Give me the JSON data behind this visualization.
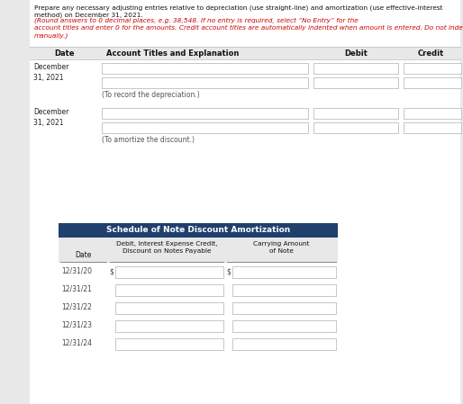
{
  "header_black": "Prepare any necessary adjusting entries relative to depreciation (use straight-line) and amortization (use effective-interest\nmethod) on December 31, 2021. ",
  "header_red": "(Round answers to 0 decimal places, e.g. 38,548. If no entry is required, select “No Entry” for the\naccount titles and enter 0 for the amounts. Credit account titles are automatically indented when amount is entered. Do not indent\nmanually.)",
  "table1_col_headers": [
    "Date",
    "Account Titles and Explanation",
    "Debit",
    "Credit"
  ],
  "table1_rows": [
    {
      "date": "December\n31, 2021",
      "note": "(To record the depreciation.)"
    },
    {
      "date": "December\n31, 2021",
      "note": "(To amortize the discount.)"
    }
  ],
  "table2_title": "Schedule of Note Discount Amortization",
  "table2_col1": "Date",
  "table2_col2": "Debit, Interest Expense Credit,\nDiscount on Notes Payable",
  "table2_col3": "Carrying Amount\nof Note",
  "table2_rows": [
    "12/31/20",
    "12/31/21",
    "12/31/22",
    "12/31/23",
    "12/31/24"
  ],
  "dark_blue": "#1f3f6d",
  "light_gray": "#e8e8e8",
  "box_border": "#b0b0b0",
  "red_color": "#cc0000",
  "page_bg": "#e8e8e8",
  "white": "#ffffff"
}
